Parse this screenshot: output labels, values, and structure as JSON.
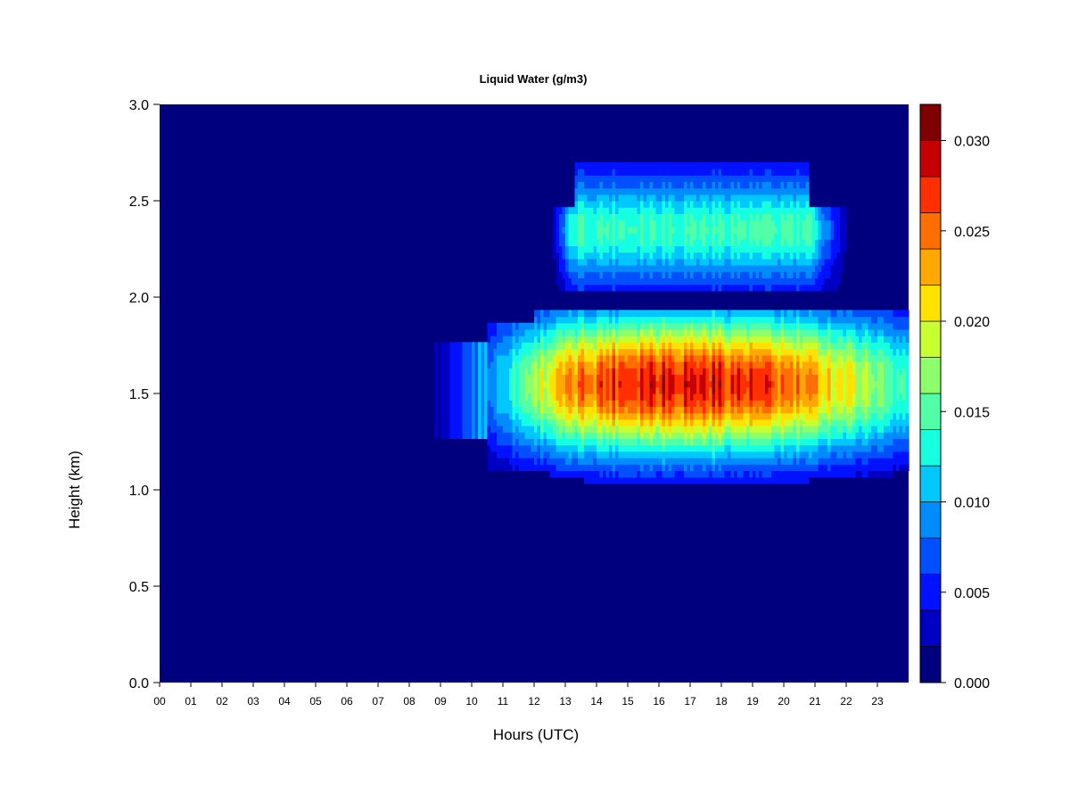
{
  "chart_data": {
    "type": "heatmap",
    "title": "Liquid Water (g/m3)",
    "xlabel": "Hours (UTC)",
    "ylabel": "Height (km)",
    "xlim": [
      0,
      24
    ],
    "ylim": [
      0.0,
      3.0
    ],
    "x_ticks": [
      "00",
      "01",
      "02",
      "03",
      "04",
      "05",
      "06",
      "07",
      "08",
      "09",
      "10",
      "11",
      "12",
      "13",
      "14",
      "15",
      "16",
      "17",
      "18",
      "19",
      "20",
      "21",
      "22",
      "23"
    ],
    "y_ticks": [
      "0.0",
      "0.5",
      "1.0",
      "1.5",
      "2.0",
      "2.5",
      "3.0"
    ],
    "colorbar": {
      "levels": [
        0.0,
        0.002,
        0.004,
        0.006,
        0.008,
        0.01,
        0.012,
        0.014,
        0.016,
        0.018,
        0.02,
        0.022,
        0.024,
        0.026,
        0.028,
        0.03,
        0.032
      ],
      "colors": [
        "#00007F",
        "#0000C4",
        "#0012FF",
        "#0050FF",
        "#008CFF",
        "#00C8FF",
        "#16FFE1",
        "#50FFA7",
        "#8CFF6A",
        "#C8FF30",
        "#FFE200",
        "#FFA800",
        "#FF6E00",
        "#FF2F00",
        "#C60000",
        "#7F0000"
      ],
      "tick_values": [
        0.0,
        0.005,
        0.01,
        0.015,
        0.02,
        0.025,
        0.03
      ],
      "tick_labels": [
        "0.000",
        "0.005",
        "0.010",
        "0.015",
        "0.020",
        "0.025",
        "0.030"
      ]
    },
    "cloud_layers": [
      {
        "name": "lower",
        "x_start": 8.3,
        "x_end": 24.0,
        "y_base": 1.1,
        "y_top": 1.85,
        "peak_x": 16.0,
        "peak_y": 1.55,
        "peak_value": 0.029
      },
      {
        "name": "upper",
        "x_start": 12.5,
        "x_end": 22.2,
        "y_base": 2.05,
        "y_top": 2.7,
        "peak_x": 16.5,
        "peak_y": 2.35,
        "peak_value": 0.012
      }
    ]
  }
}
